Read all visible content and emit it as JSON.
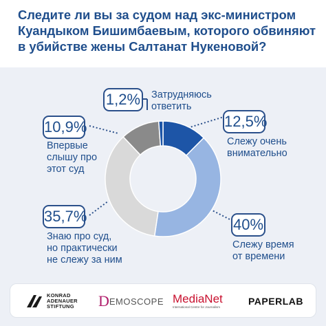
{
  "title": "Следите ли вы за судом над экс-министром Куандыком Бишимбаевым, которого обвиняют в убийстве жены Салтанат Нукеновой?",
  "colors": {
    "dark_blue": "#1d55a7",
    "light_blue": "#97b5e2",
    "light_gray": "#d9d9d9",
    "dark_gray": "#8a8a8a",
    "text": "#1f4e8c",
    "panel_bg": "#edf0f6"
  },
  "chart_data": {
    "type": "pie",
    "variant": "donut",
    "slices": [
      {
        "value": "12,5%",
        "label": "Слежу очень внимательно",
        "percent": 12.5,
        "color": "#1d55a7"
      },
      {
        "value": "40%",
        "label": "Слежу время от времени",
        "percent": 40,
        "color": "#97b5e2"
      },
      {
        "value": "35,7%",
        "label": "Знаю про суд, но практически не слежу за ним",
        "percent": 35.7,
        "color": "#d9d9d9"
      },
      {
        "value": "10,9%",
        "label": "Впервые слышу про этот суд",
        "percent": 10.9,
        "color": "#8a8a8a"
      },
      {
        "value": "1,2%",
        "label": "Затрудняюсь ответить",
        "percent": 1.2,
        "color": "#1d55a7"
      }
    ]
  },
  "labels": {
    "s1_lines": [
      "Слежу очень",
      "внимательно"
    ],
    "s2_lines": [
      "Слежу время",
      "от времени"
    ],
    "s3_lines": [
      "Знаю про суд,",
      "но практически",
      "не слежу за ним"
    ],
    "s4_lines": [
      "Впервые",
      "слышу про",
      "этот суд"
    ],
    "s5_lines": [
      "Затрудняюсь",
      "ответить"
    ]
  },
  "logos": {
    "kas": [
      "KONRAD",
      "ADENAUER",
      "STIFTUNG"
    ],
    "demoscope": "EMOSCOPE",
    "demoscope_initial": "D",
    "medianet": "MediaNet",
    "medianet_sub": "International Centre for Journalism",
    "paperlab": "PAPERLAB"
  }
}
